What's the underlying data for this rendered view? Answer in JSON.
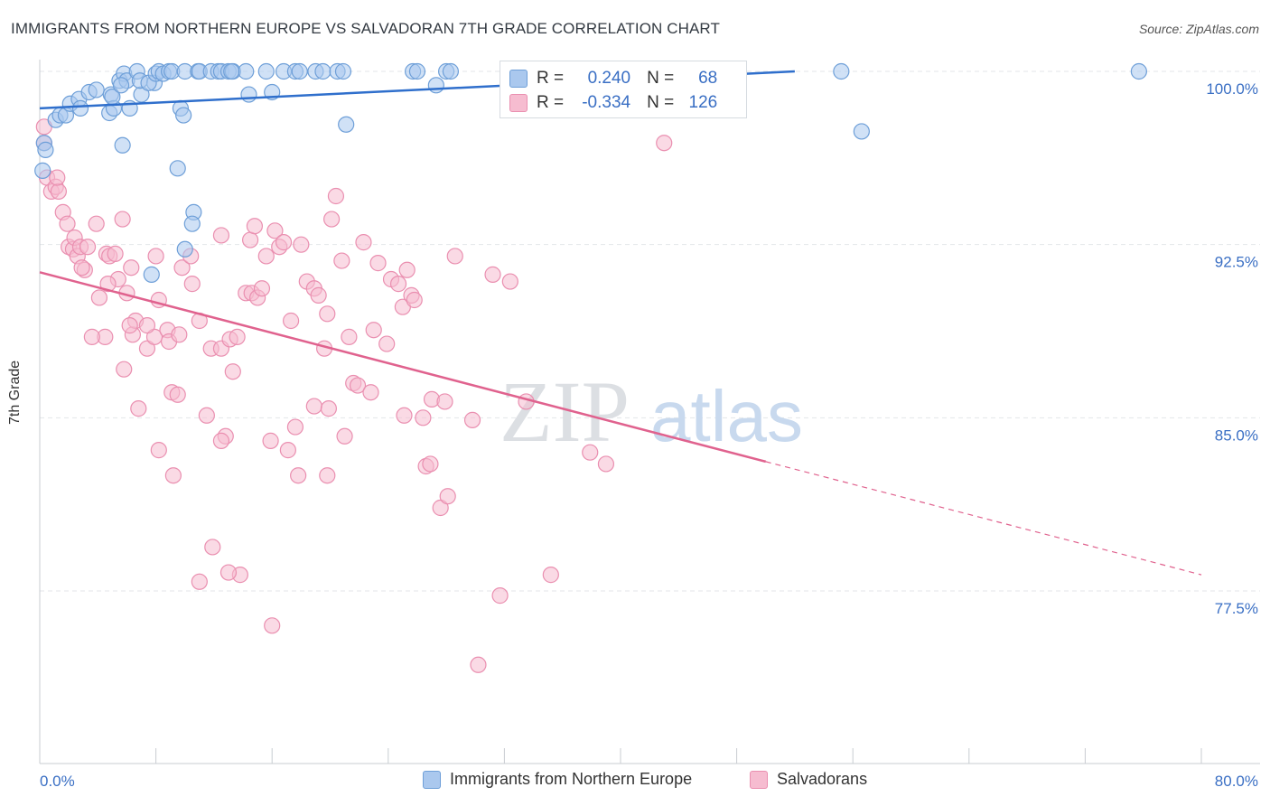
{
  "header": {
    "title": "IMMIGRANTS FROM NORTHERN EUROPE VS SALVADORAN 7TH GRADE CORRELATION CHART",
    "source": "Source: ZipAtlas.com"
  },
  "watermark": {
    "zip": "ZIP",
    "atlas": "atlas"
  },
  "stats": {
    "blue": {
      "r_label": "R =",
      "r_value": "0.240",
      "n_label": "N =",
      "n_value": "68"
    },
    "pink": {
      "r_label": "R =",
      "r_value": "-0.334",
      "n_label": "N =",
      "n_value": "126"
    }
  },
  "legend": {
    "blue_label": "Immigrants from Northern Europe",
    "pink_label": "Salvadorans"
  },
  "colors": {
    "blue_fill": "#aac8ee",
    "blue_stroke": "#6e9fd8",
    "blue_line": "#2f6fcc",
    "pink_fill": "#f6bcd0",
    "pink_stroke": "#ea8fb0",
    "pink_line": "#e0628e",
    "tick_label": "#3a6fc4",
    "grid": "#e3e6ea"
  },
  "chart_data": {
    "type": "scatter",
    "title": "IMMIGRANTS FROM NORTHERN EUROPE VS SALVADORAN 7TH GRADE CORRELATION CHART",
    "xlabel": "",
    "ylabel": "7th Grade",
    "xlim": [
      0,
      80
    ],
    "ylim": [
      70.5,
      101
    ],
    "x_tick_labels": [
      "0.0%",
      "80.0%"
    ],
    "y_ticks": [
      100,
      92.5,
      85,
      77.5
    ],
    "y_tick_labels": [
      "100.0%",
      "92.5%",
      "85.0%",
      "77.5%"
    ],
    "grid": true,
    "legend_position": "bottom",
    "series": [
      {
        "name": "Immigrants from Northern Europe",
        "color": "#6e9fd8",
        "trend": {
          "x": [
            0,
            52
          ],
          "y": [
            98.4,
            100.0
          ]
        },
        "points": [
          [
            0.3,
            96.9
          ],
          [
            0.4,
            96.6
          ],
          [
            0.2,
            95.7
          ],
          [
            1.1,
            97.9
          ],
          [
            1.4,
            98.1
          ],
          [
            1.8,
            98.1
          ],
          [
            2.1,
            98.6
          ],
          [
            2.7,
            98.8
          ],
          [
            2.8,
            98.4
          ],
          [
            3.4,
            99.1
          ],
          [
            3.9,
            99.2
          ],
          [
            4.8,
            98.2
          ],
          [
            4.9,
            99.0
          ],
          [
            5.1,
            98.4
          ],
          [
            5.0,
            98.9
          ],
          [
            5.5,
            99.6
          ],
          [
            5.8,
            99.9
          ],
          [
            6.0,
            99.6
          ],
          [
            5.6,
            99.4
          ],
          [
            6.2,
            98.4
          ],
          [
            6.7,
            100.0
          ],
          [
            7.0,
            99.0
          ],
          [
            6.9,
            99.6
          ],
          [
            7.9,
            99.5
          ],
          [
            7.5,
            99.5
          ],
          [
            8.0,
            99.9
          ],
          [
            8.2,
            100.0
          ],
          [
            8.5,
            99.9
          ],
          [
            8.9,
            100.0
          ],
          [
            9.1,
            100.0
          ],
          [
            9.7,
            98.4
          ],
          [
            9.9,
            98.1
          ],
          [
            10.0,
            100.0
          ],
          [
            10.9,
            100.0
          ],
          [
            11.0,
            100.0
          ],
          [
            11.8,
            100.0
          ],
          [
            12.3,
            100.0
          ],
          [
            12.5,
            100.0
          ],
          [
            13.0,
            100.0
          ],
          [
            13.3,
            100.0
          ],
          [
            14.2,
            100.0
          ],
          [
            14.4,
            99.0
          ],
          [
            15.6,
            100.0
          ],
          [
            16.0,
            99.1
          ],
          [
            16.8,
            100.0
          ],
          [
            17.6,
            100.0
          ],
          [
            17.9,
            100.0
          ],
          [
            19.0,
            100.0
          ],
          [
            19.5,
            100.0
          ],
          [
            20.5,
            100.0
          ],
          [
            20.9,
            100.0
          ],
          [
            21.1,
            97.7
          ],
          [
            25.7,
            100.0
          ],
          [
            26.0,
            100.0
          ],
          [
            27.3,
            99.4
          ],
          [
            28.0,
            100.0
          ],
          [
            28.3,
            100.0
          ],
          [
            33.0,
            100.0
          ],
          [
            55.2,
            100.0
          ],
          [
            56.6,
            97.4
          ],
          [
            75.7,
            100.0
          ],
          [
            5.7,
            96.8
          ],
          [
            9.5,
            95.8
          ],
          [
            10.6,
            93.9
          ],
          [
            10.5,
            93.4
          ],
          [
            10.0,
            92.3
          ],
          [
            7.7,
            91.2
          ],
          [
            13.2,
            100.0
          ]
        ]
      },
      {
        "name": "Salvadorans",
        "color": "#ea8fb0",
        "trend": {
          "x": [
            0,
            50
          ],
          "y": [
            91.3,
            83.1
          ]
        },
        "trend_dashed": {
          "x": [
            50,
            80
          ],
          "y": [
            83.1,
            78.2
          ]
        },
        "points": [
          [
            0.3,
            97.6
          ],
          [
            0.3,
            96.9
          ],
          [
            0.5,
            95.4
          ],
          [
            0.8,
            94.8
          ],
          [
            1.1,
            95.0
          ],
          [
            1.3,
            94.8
          ],
          [
            1.6,
            93.9
          ],
          [
            1.9,
            93.4
          ],
          [
            2.0,
            92.4
          ],
          [
            2.3,
            92.3
          ],
          [
            2.4,
            92.8
          ],
          [
            2.6,
            92.0
          ],
          [
            2.8,
            92.4
          ],
          [
            3.1,
            91.4
          ],
          [
            3.3,
            92.4
          ],
          [
            3.9,
            93.4
          ],
          [
            4.1,
            90.2
          ],
          [
            4.6,
            92.1
          ],
          [
            4.8,
            92.0
          ],
          [
            5.2,
            92.1
          ],
          [
            5.7,
            93.6
          ],
          [
            4.5,
            88.5
          ],
          [
            5.4,
            91.0
          ],
          [
            6.0,
            90.4
          ],
          [
            6.3,
            91.5
          ],
          [
            6.4,
            88.6
          ],
          [
            6.6,
            89.2
          ],
          [
            5.8,
            87.1
          ],
          [
            6.2,
            89.0
          ],
          [
            6.8,
            85.4
          ],
          [
            7.4,
            88.0
          ],
          [
            7.9,
            88.5
          ],
          [
            8.0,
            92.0
          ],
          [
            8.2,
            90.1
          ],
          [
            8.8,
            88.8
          ],
          [
            8.9,
            88.3
          ],
          [
            9.1,
            86.1
          ],
          [
            9.5,
            86.0
          ],
          [
            9.6,
            88.6
          ],
          [
            9.8,
            91.5
          ],
          [
            10.4,
            92.0
          ],
          [
            10.5,
            90.8
          ],
          [
            11.0,
            89.2
          ],
          [
            11.5,
            85.1
          ],
          [
            11.8,
            88.0
          ],
          [
            11.9,
            79.4
          ],
          [
            12.5,
            92.9
          ],
          [
            12.5,
            88.0
          ],
          [
            12.8,
            84.2
          ],
          [
            13.1,
            88.4
          ],
          [
            13.3,
            87.0
          ],
          [
            13.6,
            88.5
          ],
          [
            13.8,
            78.2
          ],
          [
            14.2,
            90.4
          ],
          [
            14.5,
            92.7
          ],
          [
            14.8,
            93.3
          ],
          [
            14.6,
            90.4
          ],
          [
            15.0,
            90.2
          ],
          [
            15.3,
            90.6
          ],
          [
            15.6,
            92.0
          ],
          [
            15.9,
            84.0
          ],
          [
            16.2,
            93.1
          ],
          [
            16.5,
            92.4
          ],
          [
            16.8,
            92.6
          ],
          [
            17.1,
            83.6
          ],
          [
            17.3,
            89.2
          ],
          [
            17.6,
            84.6
          ],
          [
            17.8,
            82.5
          ],
          [
            18.0,
            92.5
          ],
          [
            18.4,
            90.9
          ],
          [
            18.9,
            90.6
          ],
          [
            18.9,
            85.5
          ],
          [
            19.2,
            90.3
          ],
          [
            19.6,
            88.0
          ],
          [
            19.8,
            89.5
          ],
          [
            19.9,
            85.4
          ],
          [
            20.1,
            93.6
          ],
          [
            20.4,
            94.6
          ],
          [
            20.8,
            91.8
          ],
          [
            21.0,
            84.2
          ],
          [
            21.3,
            88.5
          ],
          [
            21.6,
            86.5
          ],
          [
            21.9,
            86.4
          ],
          [
            22.3,
            92.6
          ],
          [
            22.8,
            86.1
          ],
          [
            23.0,
            88.8
          ],
          [
            23.3,
            91.7
          ],
          [
            23.9,
            88.2
          ],
          [
            24.2,
            91.0
          ],
          [
            24.7,
            90.8
          ],
          [
            25.0,
            89.8
          ],
          [
            25.3,
            91.4
          ],
          [
            25.6,
            90.3
          ],
          [
            25.8,
            90.1
          ],
          [
            25.1,
            85.1
          ],
          [
            26.4,
            85.0
          ],
          [
            26.6,
            82.9
          ],
          [
            26.9,
            83.0
          ],
          [
            27.0,
            85.8
          ],
          [
            27.6,
            81.1
          ],
          [
            27.9,
            85.7
          ],
          [
            28.1,
            81.6
          ],
          [
            28.6,
            92.0
          ],
          [
            29.8,
            84.9
          ],
          [
            30.2,
            74.3
          ],
          [
            31.2,
            91.2
          ],
          [
            31.7,
            77.3
          ],
          [
            32.4,
            90.9
          ],
          [
            33.5,
            85.7
          ],
          [
            35.2,
            78.2
          ],
          [
            37.9,
            83.5
          ],
          [
            39.0,
            83.0
          ],
          [
            36.0,
            100.0
          ],
          [
            43.0,
            96.9
          ],
          [
            11.0,
            77.9
          ],
          [
            16.0,
            76.0
          ],
          [
            9.2,
            82.5
          ],
          [
            12.5,
            84.0
          ],
          [
            8.2,
            83.6
          ],
          [
            7.4,
            89.0
          ],
          [
            3.6,
            88.5
          ],
          [
            19.8,
            82.5
          ],
          [
            13.0,
            78.3
          ],
          [
            2.9,
            91.5
          ],
          [
            4.7,
            90.8
          ],
          [
            1.2,
            95.4
          ]
        ]
      }
    ]
  }
}
